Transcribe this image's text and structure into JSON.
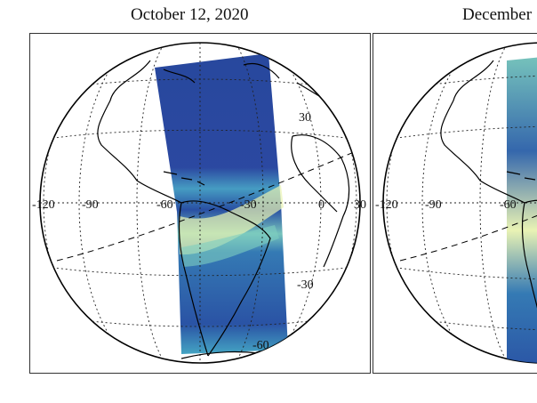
{
  "panels": [
    {
      "title": "October 12, 2020",
      "longitude_labels": [
        "-120",
        "-90",
        "-60",
        "-30",
        "0",
        "30"
      ],
      "latitude_labels": [
        "30",
        "-30",
        "-60"
      ]
    },
    {
      "title": "December",
      "longitude_labels": [
        "-120",
        "-90",
        "-60"
      ]
    }
  ],
  "colors": {
    "swath_low": "#1a3f9a",
    "swath_mid": "#2f8fbf",
    "swath_high": "#e8f2b0",
    "coastline": "#000000",
    "graticule": "#222222"
  }
}
